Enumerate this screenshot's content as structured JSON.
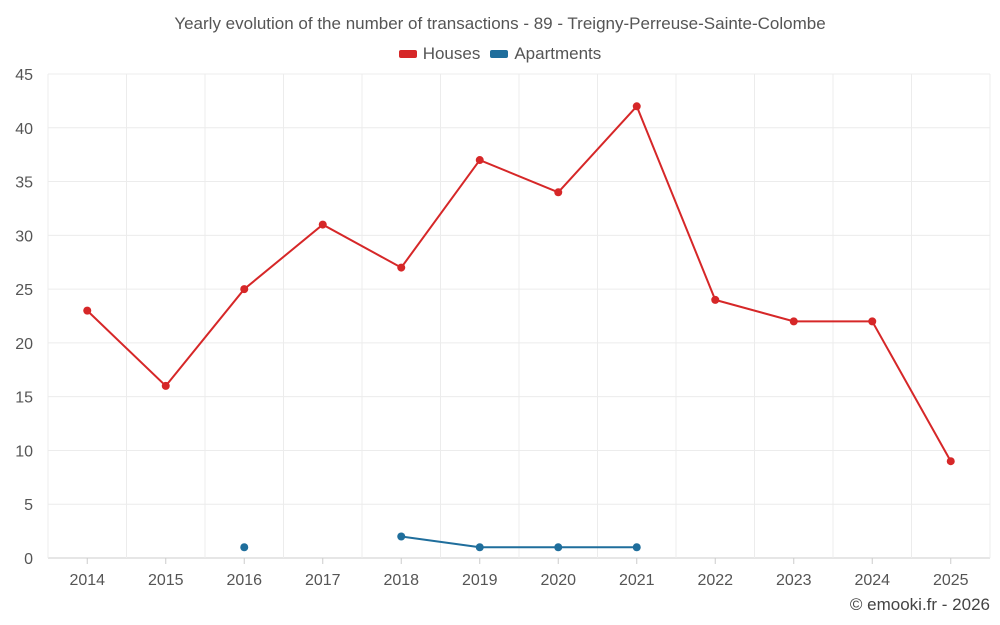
{
  "chart_data": {
    "type": "line",
    "title": "Yearly evolution of the number of transactions - 89 - Treigny-Perreuse-Sainte-Colombe",
    "xlabel": "",
    "ylabel": "",
    "categories": [
      "2014",
      "2015",
      "2016",
      "2017",
      "2018",
      "2019",
      "2020",
      "2021",
      "2022",
      "2023",
      "2024",
      "2025"
    ],
    "ylim": [
      0,
      45
    ],
    "yticks": [
      0,
      5,
      10,
      15,
      20,
      25,
      30,
      35,
      40,
      45
    ],
    "grid": true,
    "legend_position": "top-center",
    "series": [
      {
        "name": "Houses",
        "color": "#d62728",
        "values": [
          23,
          16,
          25,
          31,
          27,
          37,
          34,
          42,
          24,
          22,
          22,
          9
        ]
      },
      {
        "name": "Apartments",
        "color": "#1f6e9c",
        "values": [
          null,
          null,
          1,
          null,
          2,
          1,
          1,
          1,
          null,
          null,
          null,
          null
        ]
      }
    ]
  },
  "footer": {
    "credit": "© emooki.fr - 2026"
  }
}
